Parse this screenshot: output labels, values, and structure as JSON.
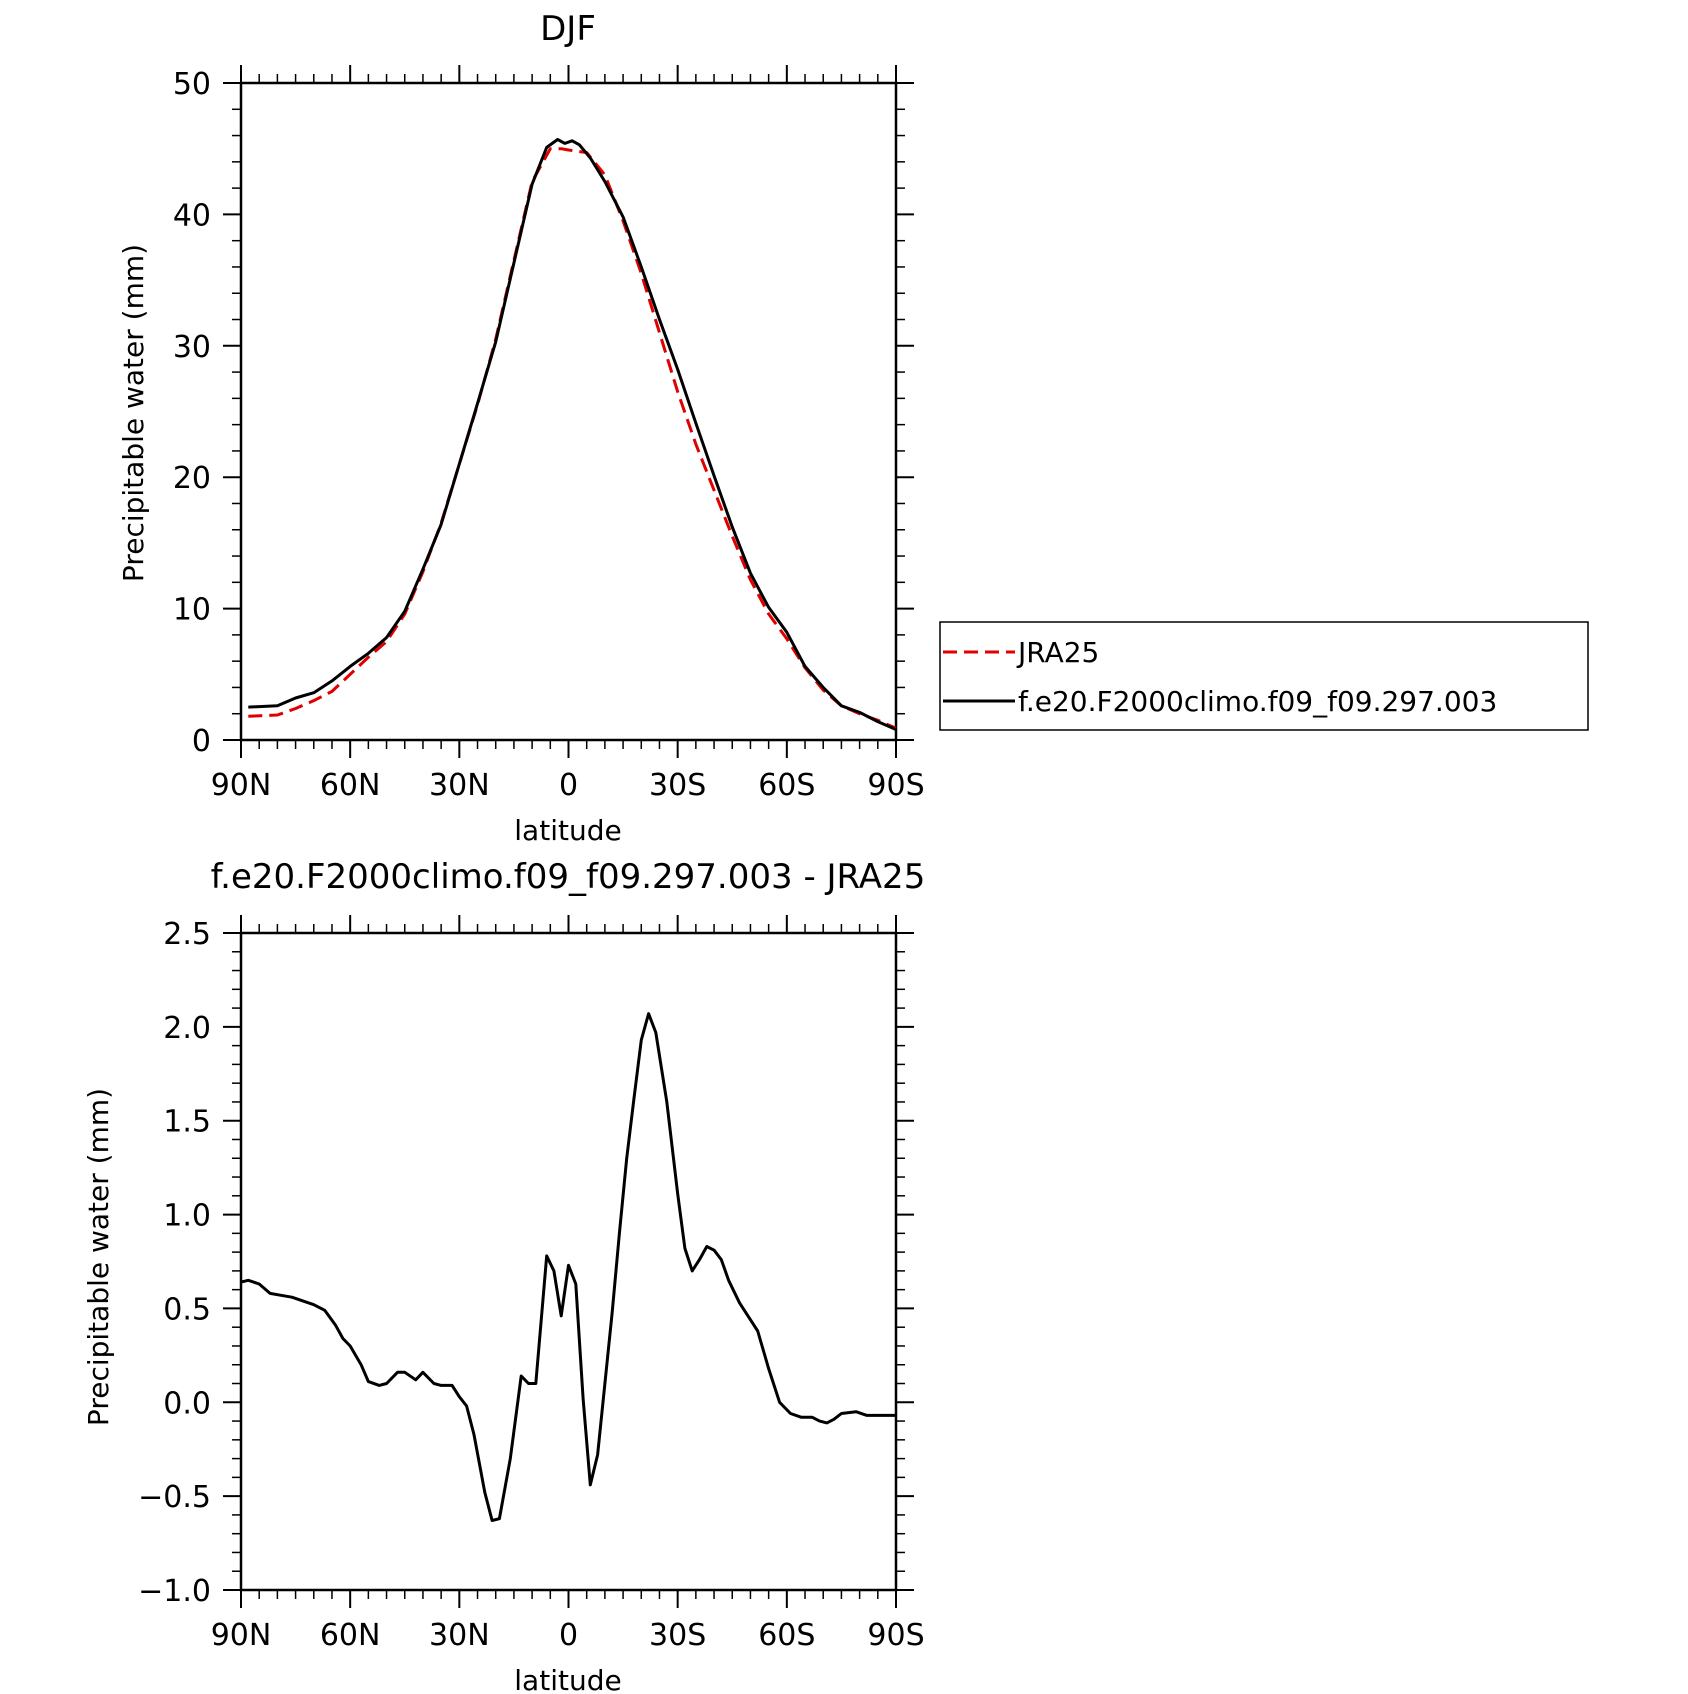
{
  "chart_data": [
    {
      "type": "line",
      "title": "DJF",
      "xlabel": "latitude",
      "ylabel": "Precipitable water (mm)",
      "xlim": [
        90,
        -90
      ],
      "ylim": [
        0,
        50
      ],
      "x_ticks": [
        90,
        60,
        30,
        0,
        -30,
        -60,
        -90
      ],
      "x_tick_labels": [
        "90N",
        "60N",
        "30N",
        "0",
        "30S",
        "60S",
        "90S"
      ],
      "y_ticks": [
        0,
        10,
        20,
        30,
        40,
        50
      ],
      "y_tick_labels": [
        "0",
        "10",
        "20",
        "30",
        "40",
        "50"
      ],
      "legend": {
        "placement": "right"
      },
      "series": [
        {
          "name": "JRA25",
          "color": "#e00000",
          "dash": "dashed",
          "x": [
            88,
            80,
            75,
            70,
            65,
            60,
            55,
            50,
            45,
            40,
            35,
            30,
            25,
            20,
            15,
            10,
            5,
            2,
            0,
            -5,
            -10,
            -15,
            -20,
            -25,
            -30,
            -35,
            -40,
            -45,
            -50,
            -55,
            -60,
            -65,
            -70,
            -75,
            -80,
            -85,
            -90
          ],
          "y": [
            1.8,
            1.9,
            2.4,
            3.0,
            3.7,
            5.0,
            6.3,
            7.5,
            9.6,
            12.8,
            16.5,
            21.0,
            25.5,
            30.5,
            36.5,
            42.5,
            45.0,
            45.0,
            44.9,
            44.7,
            43.0,
            39.5,
            35.5,
            31.0,
            26.5,
            22.5,
            19.0,
            15.5,
            12.2,
            9.6,
            7.7,
            5.5,
            3.8,
            2.6,
            2.0,
            1.5,
            0.9
          ]
        },
        {
          "name": "f.e20.F2000climo.f09_f09.297.003",
          "color": "#000000",
          "dash": "solid",
          "x": [
            88,
            80,
            75,
            70,
            65,
            60,
            55,
            50,
            45,
            40,
            35,
            30,
            25,
            20,
            15,
            10,
            6,
            3,
            1,
            -1,
            -3,
            -6,
            -10,
            -15,
            -20,
            -25,
            -30,
            -35,
            -40,
            -45,
            -50,
            -55,
            -60,
            -65,
            -70,
            -75,
            -80,
            -85,
            -90
          ],
          "y": [
            2.5,
            2.6,
            3.2,
            3.6,
            4.5,
            5.6,
            6.6,
            7.8,
            9.8,
            13.0,
            16.4,
            21.0,
            25.6,
            30.3,
            36.3,
            42.3,
            45.1,
            45.7,
            45.4,
            45.6,
            45.3,
            44.3,
            42.5,
            39.8,
            36.0,
            32.0,
            28.2,
            24.1,
            20.1,
            16.2,
            12.7,
            10.1,
            8.2,
            5.6,
            4.0,
            2.6,
            2.1,
            1.4,
            0.8
          ]
        }
      ]
    },
    {
      "type": "line",
      "title": "f.e20.F2000climo.f09_f09.297.003 - JRA25",
      "xlabel": "latitude",
      "ylabel": "Precipitable water (mm)",
      "xlim": [
        90,
        -90
      ],
      "ylim": [
        -1.0,
        2.5
      ],
      "x_ticks": [
        90,
        60,
        30,
        0,
        -30,
        -60,
        -90
      ],
      "x_tick_labels": [
        "90N",
        "60N",
        "30N",
        "0",
        "30S",
        "60S",
        "90S"
      ],
      "y_ticks": [
        -1.0,
        -0.5,
        0.0,
        0.5,
        1.0,
        1.5,
        2.0,
        2.5
      ],
      "y_tick_labels": [
        "−1.0",
        "−0.5",
        "0.0",
        "0.5",
        "1.0",
        "1.5",
        "2.0",
        "2.5"
      ],
      "series": [
        {
          "color": "#000000",
          "dash": "solid",
          "x": [
            90,
            88,
            85,
            82,
            79,
            76,
            73,
            70,
            67,
            64,
            62,
            60,
            57,
            55,
            52,
            50,
            47,
            45,
            42,
            40,
            37,
            35,
            32,
            30,
            28,
            26,
            23,
            21,
            19,
            16,
            13,
            11,
            9,
            6,
            4,
            2,
            0,
            -2,
            -4,
            -6,
            -8,
            -10,
            -12,
            -14,
            -16,
            -18,
            -20,
            -22,
            -24,
            -27,
            -30,
            -32,
            -34,
            -36,
            -38,
            -40,
            -42,
            -44,
            -47,
            -50,
            -52,
            -55,
            -58,
            -61,
            -64,
            -67,
            -69,
            -71,
            -73,
            -75,
            -79,
            -82,
            -85,
            -88,
            -90
          ],
          "y": [
            0.64,
            0.65,
            0.63,
            0.58,
            0.57,
            0.56,
            0.54,
            0.52,
            0.49,
            0.41,
            0.34,
            0.3,
            0.2,
            0.11,
            0.09,
            0.1,
            0.16,
            0.16,
            0.12,
            0.16,
            0.1,
            0.09,
            0.09,
            0.03,
            -0.02,
            -0.17,
            -0.48,
            -0.63,
            -0.62,
            -0.3,
            0.14,
            0.1,
            0.1,
            0.78,
            0.7,
            0.46,
            0.73,
            0.63,
            0.02,
            -0.44,
            -0.28,
            0.1,
            0.48,
            0.9,
            1.3,
            1.62,
            1.93,
            2.07,
            1.97,
            1.6,
            1.11,
            0.82,
            0.7,
            0.76,
            0.83,
            0.81,
            0.76,
            0.65,
            0.53,
            0.44,
            0.38,
            0.18,
            0.0,
            -0.06,
            -0.08,
            -0.08,
            -0.1,
            -0.11,
            -0.09,
            -0.06,
            -0.05,
            -0.07,
            -0.07,
            -0.07,
            -0.07
          ]
        }
      ]
    }
  ]
}
